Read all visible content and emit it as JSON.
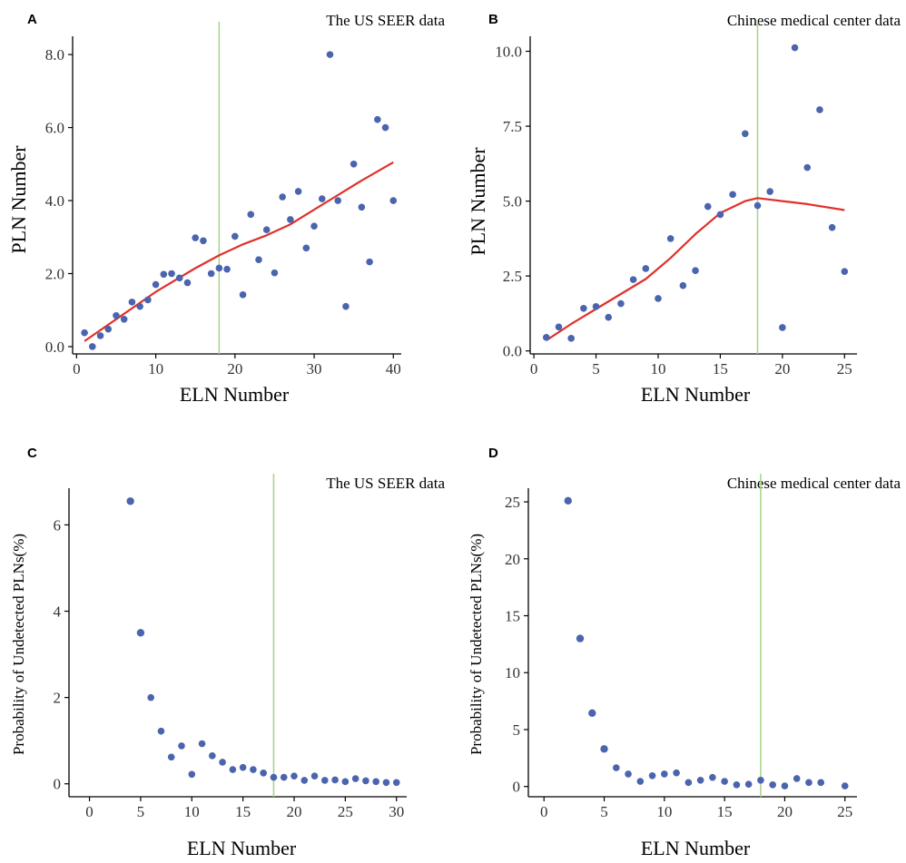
{
  "chart_data": [
    {
      "panel": "A",
      "type": "scatter",
      "title": "The US SEER data",
      "xlabel": "ELN Number",
      "ylabel": "PLN Number",
      "xlim": [
        -0.5,
        41
      ],
      "ylim": [
        -0.2,
        8.5
      ],
      "xticks": [
        0,
        10,
        20,
        30,
        40
      ],
      "yticks": [
        0,
        2,
        4,
        6,
        8
      ],
      "ytick_labels": [
        "0.0",
        "2.0",
        "4.0",
        "6.0",
        "8.0"
      ],
      "xtick_labels": [
        "0",
        "10",
        "20",
        "30",
        "40"
      ],
      "vline": 18,
      "colors": {
        "points": "#4a64ad",
        "fit": "#e0302a",
        "vline": "#a9d58f"
      },
      "x": [
        1,
        2,
        3,
        4,
        5,
        6,
        7,
        8,
        9,
        10,
        11,
        12,
        13,
        14,
        15,
        16,
        17,
        18,
        19,
        20,
        21,
        22,
        23,
        24,
        25,
        26,
        27,
        28,
        29,
        30,
        31,
        32,
        33,
        34,
        35,
        36,
        37,
        38,
        39,
        40
      ],
      "y": [
        0.38,
        0.0,
        0.3,
        0.48,
        0.85,
        0.75,
        1.22,
        1.1,
        1.28,
        1.7,
        1.98,
        2.0,
        1.88,
        1.75,
        2.98,
        2.9,
        2.0,
        2.15,
        2.12,
        3.02,
        1.42,
        3.62,
        2.38,
        3.2,
        2.02,
        4.1,
        3.48,
        4.25,
        2.7,
        3.3,
        4.05,
        8.0,
        4.0,
        1.1,
        5.0,
        3.82,
        2.32,
        6.22,
        6.0,
        4.0
      ],
      "fit_x": [
        1,
        5,
        10,
        15,
        18,
        21,
        24,
        27,
        30,
        33,
        36,
        40
      ],
      "fit_y": [
        0.15,
        0.75,
        1.5,
        2.15,
        2.5,
        2.8,
        3.05,
        3.35,
        3.75,
        4.15,
        4.55,
        5.05
      ]
    },
    {
      "panel": "B",
      "type": "scatter",
      "title": "Chinese medical center data",
      "xlabel": "ELN Number",
      "ylabel": "PLN Number",
      "xlim": [
        -0.3,
        26
      ],
      "ylim": [
        -0.1,
        10.5
      ],
      "xticks": [
        0,
        5,
        10,
        15,
        20,
        25
      ],
      "yticks": [
        0,
        2.5,
        5,
        7.5,
        10
      ],
      "ytick_labels": [
        "0.0",
        "2.5",
        "5.0",
        "7.5",
        "10.0"
      ],
      "xtick_labels": [
        "0",
        "5",
        "10",
        "15",
        "20",
        "25"
      ],
      "vline": 18,
      "colors": {
        "points": "#4a64ad",
        "fit": "#e0302a",
        "vline": "#a9d58f"
      },
      "x": [
        1,
        2,
        3,
        4,
        5,
        6,
        7,
        8,
        9,
        10,
        11,
        12,
        13,
        14,
        15,
        16,
        17,
        18,
        19,
        20,
        21,
        22,
        23,
        24,
        25
      ],
      "y": [
        0.45,
        0.8,
        0.42,
        1.42,
        1.48,
        1.12,
        1.58,
        2.38,
        2.75,
        1.75,
        3.75,
        2.18,
        2.68,
        4.82,
        4.55,
        5.22,
        7.25,
        4.85,
        5.32,
        0.78,
        10.12,
        6.12,
        8.05,
        4.12,
        2.65
      ],
      "fit_x": [
        1,
        3,
        5,
        7,
        9,
        11,
        13,
        15,
        17,
        18,
        20,
        22,
        25
      ],
      "fit_y": [
        0.35,
        0.9,
        1.4,
        1.9,
        2.4,
        3.1,
        3.9,
        4.6,
        5.0,
        5.1,
        5.0,
        4.9,
        4.7
      ]
    },
    {
      "panel": "C",
      "type": "scatter",
      "title": "The US SEER data",
      "xlabel": "ELN Number",
      "ylabel": "Probability of Undetected PLNs(%)",
      "xlim": [
        -2,
        31
      ],
      "ylim": [
        -0.3,
        6.85
      ],
      "xticks": [
        0,
        5,
        10,
        15,
        20,
        25,
        30
      ],
      "yticks": [
        0,
        2,
        4,
        6
      ],
      "ytick_labels": [
        "0",
        "2",
        "4",
        "6"
      ],
      "xtick_labels": [
        "0",
        "5",
        "10",
        "15",
        "20",
        "25",
        "30"
      ],
      "vline": 18,
      "colors": {
        "points": "#4a64ad",
        "vline": "#a9d58f"
      },
      "x": [
        4,
        5,
        6,
        7,
        8,
        9,
        10,
        11,
        12,
        13,
        14,
        15,
        16,
        17,
        18,
        19,
        20,
        21,
        22,
        23,
        24,
        25,
        26,
        27,
        28,
        29,
        30
      ],
      "y": [
        6.55,
        3.5,
        2.0,
        1.22,
        0.62,
        0.88,
        0.22,
        0.93,
        0.65,
        0.5,
        0.33,
        0.38,
        0.33,
        0.25,
        0.15,
        0.15,
        0.18,
        0.08,
        0.18,
        0.08,
        0.09,
        0.05,
        0.12,
        0.07,
        0.05,
        0.03,
        0.03
      ]
    },
    {
      "panel": "D",
      "type": "scatter",
      "title": "Chinese medical center data",
      "xlabel": "ELN Number",
      "ylabel": "Probability of Undetected PLNs(%)",
      "xlim": [
        -1.3,
        26
      ],
      "ylim": [
        -0.9,
        26.2
      ],
      "xticks": [
        0,
        5,
        10,
        15,
        20,
        25
      ],
      "yticks": [
        0,
        5,
        10,
        15,
        20,
        25
      ],
      "ytick_labels": [
        "0",
        "5",
        "10",
        "15",
        "20",
        "25"
      ],
      "xtick_labels": [
        "0",
        "5",
        "10",
        "15",
        "20",
        "25"
      ],
      "vline": 18,
      "colors": {
        "points": "#4a64ad",
        "vline": "#a9d58f"
      },
      "x": [
        2,
        3,
        4,
        5,
        6,
        7,
        8,
        9,
        10,
        11,
        12,
        13,
        14,
        15,
        16,
        17,
        18,
        19,
        20,
        21,
        22,
        23,
        25
      ],
      "y": [
        25.1,
        13.0,
        6.45,
        3.3,
        1.65,
        1.1,
        0.45,
        0.95,
        1.1,
        1.2,
        0.35,
        0.55,
        0.8,
        0.45,
        0.15,
        0.2,
        0.55,
        0.15,
        0.05,
        0.7,
        0.35,
        0.35,
        0.05
      ]
    }
  ]
}
